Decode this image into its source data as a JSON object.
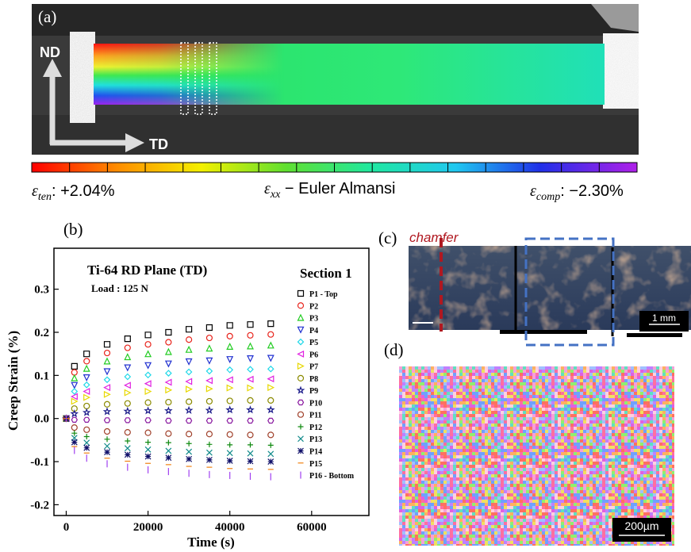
{
  "panel_a": {
    "label": "(a)",
    "nd": "ND",
    "td": "TD",
    "colorbar": {
      "left": {
        "symbol": "ε",
        "sub": "ten",
        "text": ": +2.04%"
      },
      "center": {
        "symbol": "ε",
        "sub": "xx",
        "text": " − Euler Almansi"
      },
      "right": {
        "symbol": "ε",
        "sub": "comp",
        "text": ": −2.30%"
      }
    }
  },
  "panel_b": {
    "label": "(b)"
  },
  "chart_data": {
    "type": "scatter",
    "title": "Ti-64 RD Plane (TD)",
    "annotation": "Load : 125 N",
    "section": "Section 1",
    "xlabel": "Time (s)",
    "ylabel": "Creep Strain (%)",
    "xlim": [
      -3000,
      74000
    ],
    "ylim": [
      -0.225,
      0.395
    ],
    "xticks": [
      0,
      20000,
      40000,
      60000
    ],
    "yticks": [
      -0.2,
      -0.1,
      {
        "value": 0,
        "label": "0.0"
      },
      0.1,
      0.2,
      0.3
    ],
    "x": [
      0,
      2000,
      5000,
      10000,
      15000,
      20000,
      25000,
      30000,
      35000,
      40000,
      45000,
      50000
    ],
    "series": [
      {
        "name": "P1 - Top",
        "color": "#000000",
        "marker": "square",
        "values": [
          0,
          0.121,
          0.15,
          0.172,
          0.185,
          0.194,
          0.2,
          0.207,
          0.211,
          0.216,
          0.218,
          0.22
        ]
      },
      {
        "name": "P2",
        "color": "#e8241c",
        "marker": "circle",
        "values": [
          0,
          0.107,
          0.133,
          0.152,
          0.164,
          0.172,
          0.177,
          0.183,
          0.187,
          0.191,
          0.193,
          0.195
        ]
      },
      {
        "name": "P3",
        "color": "#22cc22",
        "marker": "triangle-up",
        "values": [
          0,
          0.094,
          0.116,
          0.133,
          0.143,
          0.15,
          0.155,
          0.16,
          0.163,
          0.167,
          0.168,
          0.17
        ]
      },
      {
        "name": "P4",
        "color": "#2030d0",
        "marker": "triangle-down",
        "values": [
          0,
          0.077,
          0.095,
          0.109,
          0.118,
          0.123,
          0.127,
          0.132,
          0.134,
          0.137,
          0.139,
          0.14
        ]
      },
      {
        "name": "P5",
        "color": "#20d8e8",
        "marker": "diamond",
        "values": [
          0,
          0.063,
          0.078,
          0.09,
          0.097,
          0.101,
          0.105,
          0.108,
          0.11,
          0.113,
          0.114,
          0.115
        ]
      },
      {
        "name": "P6",
        "color": "#e020e0",
        "marker": "triangle-left",
        "values": [
          0,
          0.051,
          0.063,
          0.072,
          0.077,
          0.081,
          0.084,
          0.086,
          0.088,
          0.09,
          0.091,
          0.092
        ]
      },
      {
        "name": "P7",
        "color": "#e8d800",
        "marker": "triangle-right",
        "values": [
          0,
          0.04,
          0.049,
          0.056,
          0.06,
          0.063,
          0.066,
          0.068,
          0.069,
          0.071,
          0.071,
          0.072
        ]
      },
      {
        "name": "P8",
        "color": "#8a8a00",
        "marker": "circle",
        "values": [
          0,
          0.023,
          0.029,
          0.033,
          0.035,
          0.037,
          0.038,
          0.039,
          0.04,
          0.041,
          0.042,
          0.042
        ]
      },
      {
        "name": "P9",
        "color": "#1a1a8a",
        "marker": "star",
        "values": [
          0,
          0.011,
          0.014,
          0.016,
          0.017,
          0.018,
          0.018,
          0.019,
          0.019,
          0.02,
          0.02,
          0.02
        ]
      },
      {
        "name": "P10",
        "color": "#8a1aa0",
        "marker": "hexagon",
        "values": [
          0,
          -0.003,
          -0.003,
          -0.004,
          -0.004,
          -0.004,
          -0.005,
          -0.005,
          -0.005,
          -0.005,
          -0.005,
          -0.005
        ]
      },
      {
        "name": "P11",
        "color": "#a0402a",
        "marker": "circle",
        "values": [
          0,
          -0.021,
          -0.026,
          -0.03,
          -0.032,
          -0.033,
          -0.035,
          -0.036,
          -0.036,
          -0.037,
          -0.038,
          -0.038
        ]
      },
      {
        "name": "P12",
        "color": "#108a10",
        "marker": "plus",
        "values": [
          0,
          -0.034,
          -0.042,
          -0.048,
          -0.052,
          -0.055,
          -0.056,
          -0.058,
          -0.06,
          -0.061,
          -0.061,
          -0.062
        ]
      },
      {
        "name": "P13",
        "color": "#108a8a",
        "marker": "x",
        "values": [
          0,
          -0.045,
          -0.056,
          -0.064,
          -0.069,
          -0.072,
          -0.075,
          -0.077,
          -0.079,
          -0.08,
          -0.081,
          -0.082
        ]
      },
      {
        "name": "P14",
        "color": "#10106a",
        "marker": "asterisk",
        "values": [
          0,
          -0.055,
          -0.068,
          -0.078,
          -0.084,
          -0.088,
          -0.091,
          -0.094,
          -0.096,
          -0.098,
          -0.099,
          -0.1
        ]
      },
      {
        "name": "P15",
        "color": "#f08010",
        "marker": "dash",
        "values": [
          0,
          -0.065,
          -0.08,
          -0.092,
          -0.099,
          -0.104,
          -0.107,
          -0.111,
          -0.113,
          -0.116,
          -0.117,
          -0.118
        ]
      },
      {
        "name": "P16 - Bottom",
        "color": "#a040f0",
        "marker": "bar",
        "values": [
          0,
          -0.074,
          -0.092,
          -0.105,
          -0.113,
          -0.119,
          -0.123,
          -0.127,
          -0.13,
          -0.132,
          -0.134,
          -0.135
        ]
      }
    ]
  },
  "panel_c": {
    "label": "(c)",
    "chamfer": "chamfer",
    "scale": "1 mm"
  },
  "panel_d": {
    "label": "(d)",
    "scale": "200µm"
  }
}
